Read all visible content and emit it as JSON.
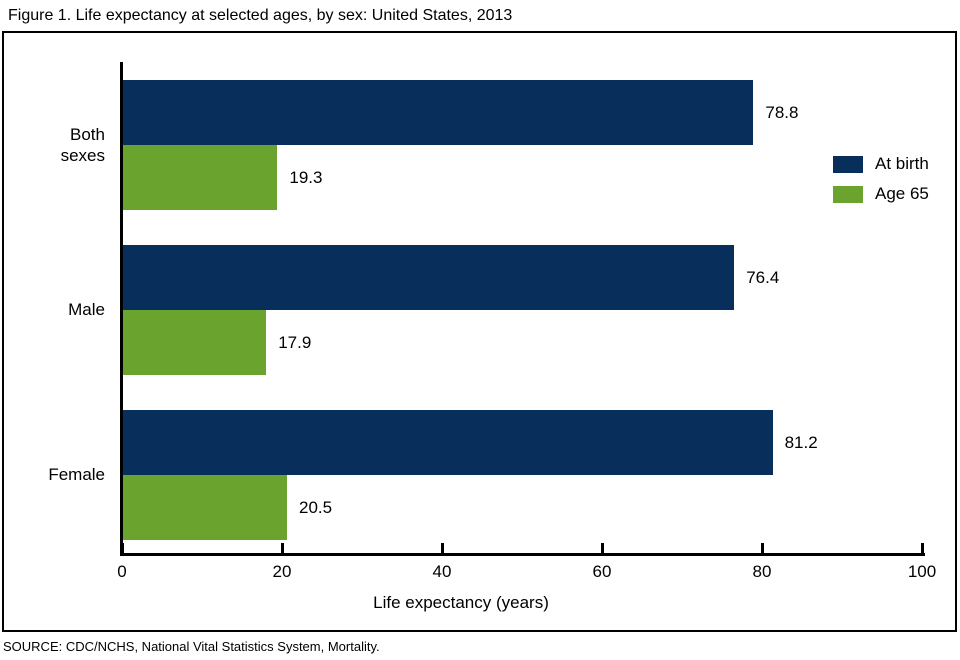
{
  "chart_data": {
    "type": "bar",
    "orientation": "horizontal",
    "title": "Figure 1. Life expectancy at selected ages, by sex: United States, 2013",
    "categories": [
      "Both sexes",
      "Male",
      "Female"
    ],
    "series": [
      {
        "name": "At birth",
        "color": "#082f5b",
        "values": [
          78.8,
          76.4,
          81.2
        ]
      },
      {
        "name": "Age 65",
        "color": "#6ba32f",
        "values": [
          19.3,
          17.9,
          20.5
        ]
      }
    ],
    "xlabel": "Life expectancy (years)",
    "ylabel": "",
    "xlim": [
      0,
      100
    ],
    "xticks": [
      0,
      20,
      40,
      60,
      80,
      100
    ],
    "grid": false,
    "value_labels": true,
    "legend_position": "right-inside",
    "source": "SOURCE: CDC/NCHS, National Vital Statistics System, Mortality."
  }
}
